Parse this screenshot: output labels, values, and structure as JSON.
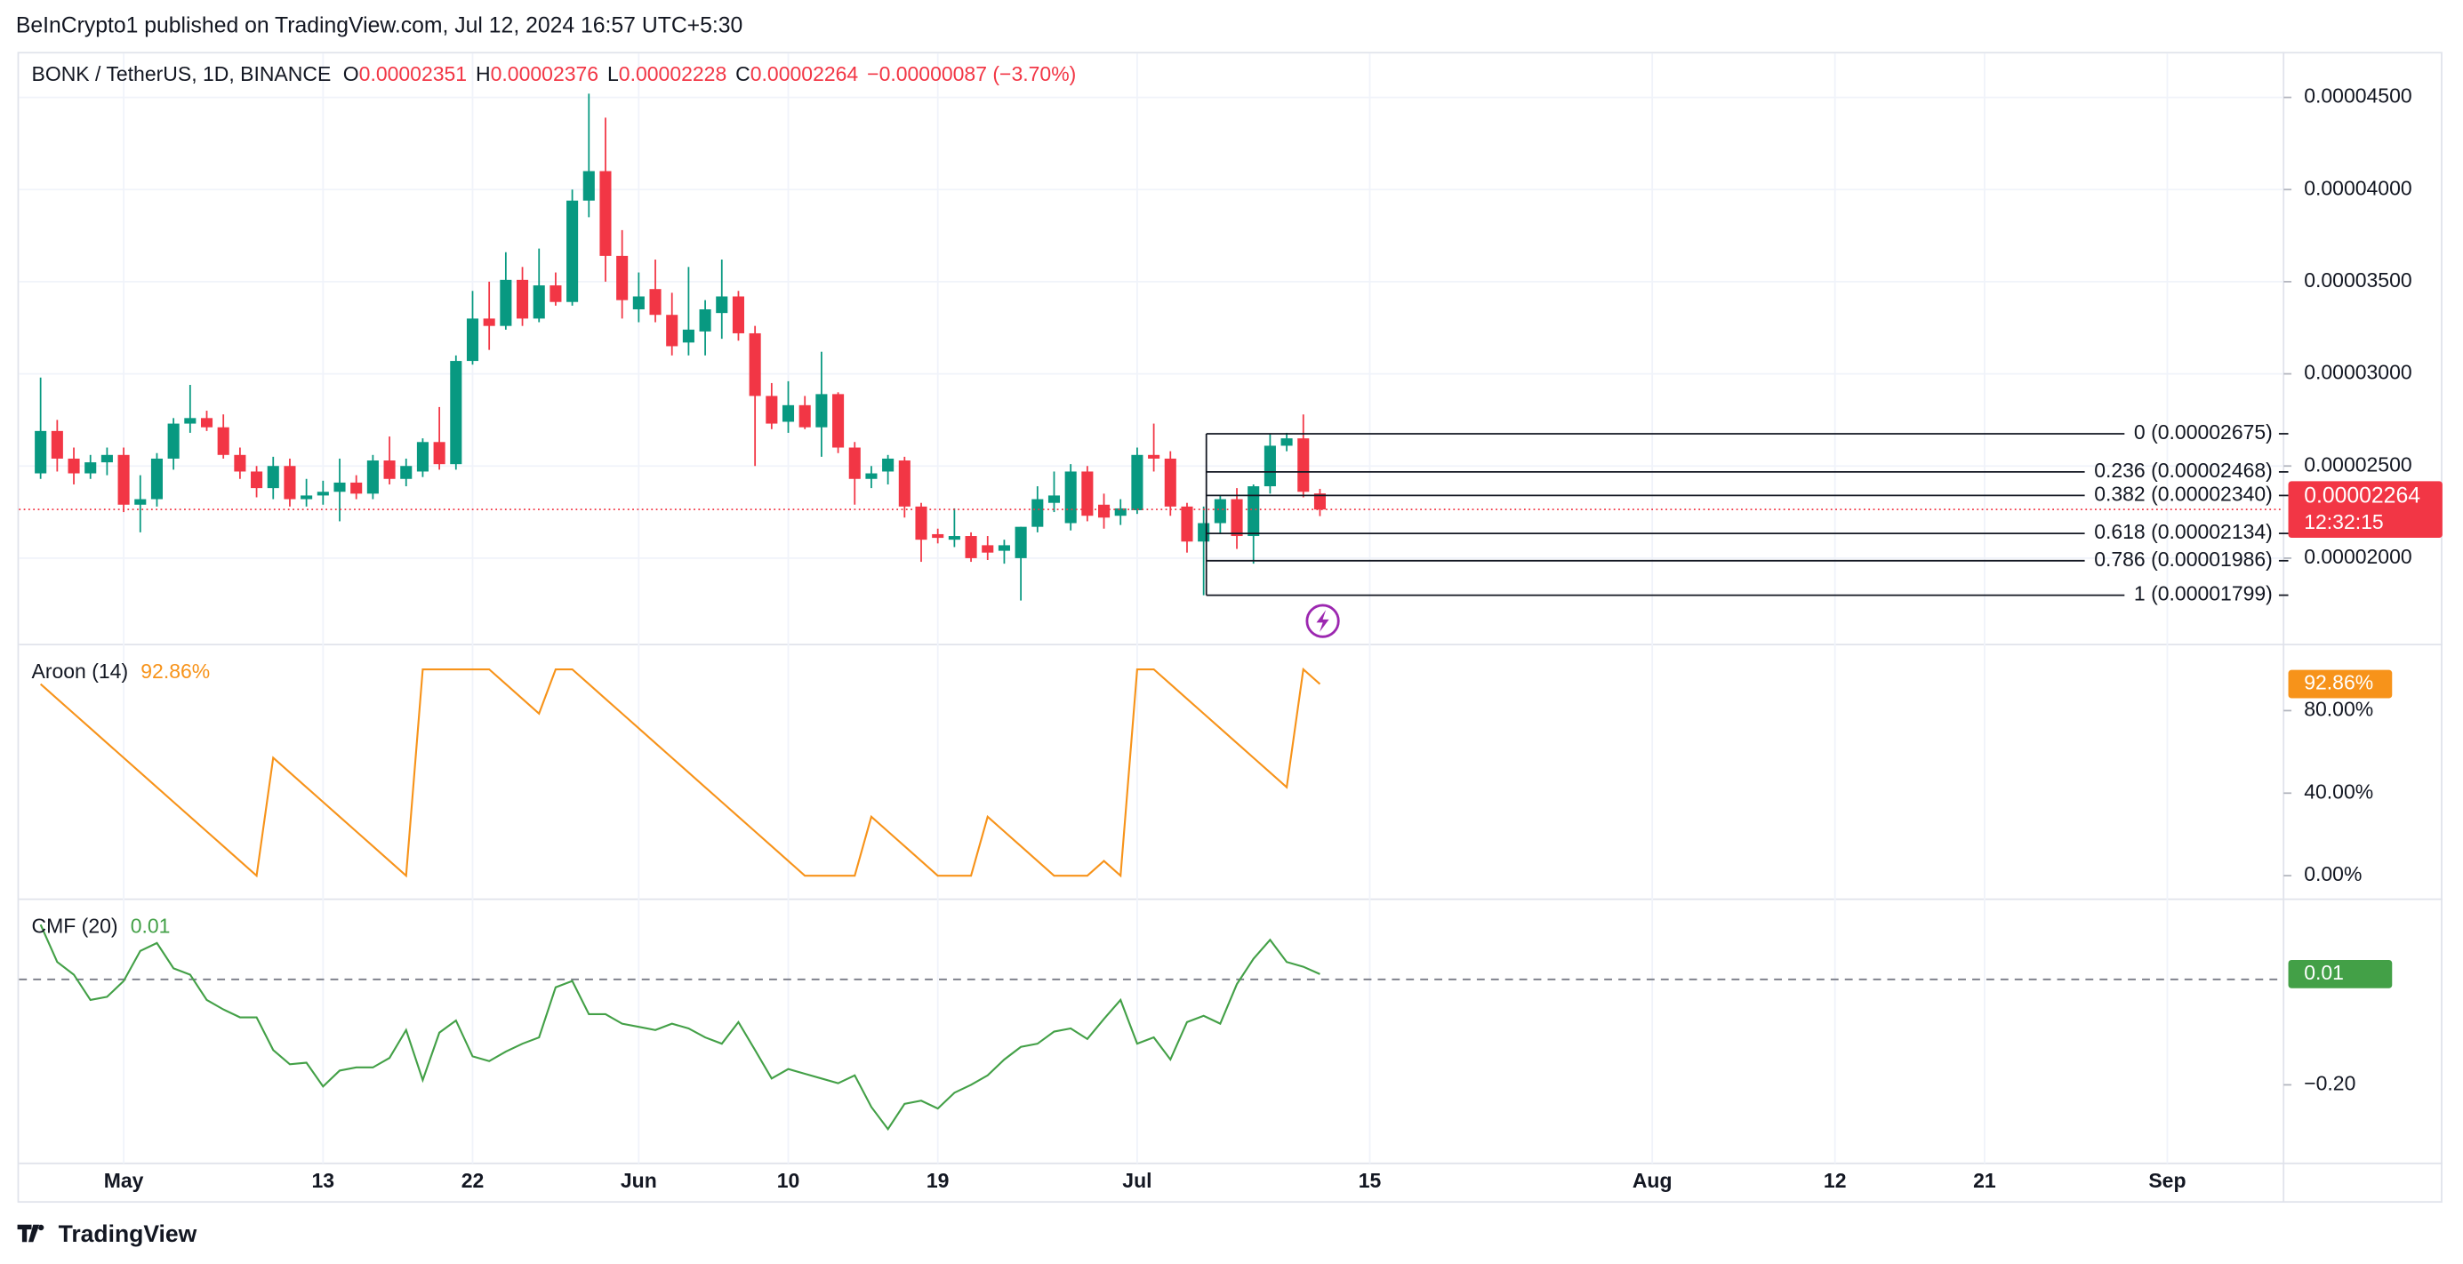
{
  "header": {
    "published": "BeInCrypto1 published on TradingView.com, Jul 12, 2024 16:57 UTC+5:30",
    "brand": "TradingView"
  },
  "chart_data": [
    {
      "type": "candlestick",
      "title": "BONK / TetherUS, 1D, BINANCE",
      "ohlc_labels": [
        "O",
        "H",
        "L",
        "C"
      ],
      "change": "−0.00000087 (−3.70%)",
      "countdown": "12:32:15",
      "up_color": "#089981",
      "down_color": "#f23645",
      "grid": true,
      "xlim": [
        115.7,
        252
      ],
      "xticks": [
        {
          "value": 122,
          "label": "May"
        },
        {
          "value": 134,
          "label": "13"
        },
        {
          "value": 143,
          "label": "22"
        },
        {
          "value": 153,
          "label": "Jun"
        },
        {
          "value": 162,
          "label": "10"
        },
        {
          "value": 171,
          "label": "19"
        },
        {
          "value": 183,
          "label": "Jul"
        },
        {
          "value": 197,
          "label": "15"
        },
        {
          "value": 214,
          "label": "Aug"
        },
        {
          "value": 225,
          "label": "12"
        },
        {
          "value": 234,
          "label": "21"
        },
        {
          "value": 245,
          "label": "Sep"
        }
      ],
      "ylim": [
        1.531e-05,
        4.747e-05
      ],
      "yticks": [
        {
          "value": 4.5e-05,
          "label": "0.00004500"
        },
        {
          "value": 4e-05,
          "label": "0.00004000"
        },
        {
          "value": 3.5e-05,
          "label": "0.00003500"
        },
        {
          "value": 3e-05,
          "label": "0.00003000"
        },
        {
          "value": 2.5e-05,
          "label": "0.00002500"
        },
        {
          "value": 2e-05,
          "label": "0.00002000"
        }
      ],
      "x": [
        117,
        118,
        119,
        120,
        121,
        122,
        123,
        124,
        125,
        126,
        127,
        128,
        129,
        130,
        131,
        132,
        133,
        134,
        135,
        136,
        137,
        138,
        139,
        140,
        141,
        142,
        143,
        144,
        145,
        146,
        147,
        148,
        149,
        150,
        151,
        152,
        153,
        154,
        155,
        156,
        157,
        158,
        159,
        160,
        161,
        162,
        163,
        164,
        165,
        166,
        167,
        168,
        169,
        170,
        171,
        172,
        173,
        174,
        175,
        176,
        177,
        178,
        179,
        180,
        181,
        182,
        183,
        184,
        185,
        186,
        187,
        188,
        189,
        190,
        191,
        192,
        193,
        194
      ],
      "open": [
        2.46e-05,
        2.69e-05,
        2.54e-05,
        2.46e-05,
        2.52e-05,
        2.56e-05,
        2.29e-05,
        2.32e-05,
        2.54e-05,
        2.73e-05,
        2.76e-05,
        2.71e-05,
        2.56e-05,
        2.47e-05,
        2.38e-05,
        2.5e-05,
        2.32e-05,
        2.34e-05,
        2.36e-05,
        2.41e-05,
        2.35e-05,
        2.53e-05,
        2.43e-05,
        2.47e-05,
        2.63e-05,
        2.51e-05,
        3.07e-05,
        3.3e-05,
        3.26e-05,
        3.51e-05,
        3.3e-05,
        3.48e-05,
        3.39e-05,
        3.94e-05,
        4.1e-05,
        3.64e-05,
        3.35e-05,
        3.46e-05,
        3.32e-05,
        3.17e-05,
        3.23e-05,
        3.33e-05,
        3.42e-05,
        3.22e-05,
        2.88e-05,
        2.74e-05,
        2.83e-05,
        2.71e-05,
        2.89e-05,
        2.6e-05,
        2.43e-05,
        2.47e-05,
        2.53e-05,
        2.28e-05,
        2.13e-05,
        2.1e-05,
        2.12e-05,
        2.07e-05,
        2.04e-05,
        2e-05,
        2.17e-05,
        2.3e-05,
        2.19e-05,
        2.47e-05,
        2.29e-05,
        2.23e-05,
        2.26e-05,
        2.56e-05,
        2.54e-05,
        2.28e-05,
        2.09e-05,
        2.19e-05,
        2.32e-05,
        2.12e-05,
        2.39e-05,
        2.61e-05,
        2.65e-05,
        2.351e-05
      ],
      "high": [
        2.98e-05,
        2.75e-05,
        2.6e-05,
        2.56e-05,
        2.6e-05,
        2.6e-05,
        2.45e-05,
        2.57e-05,
        2.76e-05,
        2.94e-05,
        2.8e-05,
        2.78e-05,
        2.6e-05,
        2.5e-05,
        2.55e-05,
        2.54e-05,
        2.43e-05,
        2.42e-05,
        2.54e-05,
        2.45e-05,
        2.56e-05,
        2.66e-05,
        2.54e-05,
        2.65e-05,
        2.82e-05,
        3.1e-05,
        3.45e-05,
        3.5e-05,
        3.66e-05,
        3.58e-05,
        3.68e-05,
        3.55e-05,
        4e-05,
        4.52e-05,
        4.39e-05,
        3.78e-05,
        3.55e-05,
        3.62e-05,
        3.44e-05,
        3.58e-05,
        3.4e-05,
        3.62e-05,
        3.45e-05,
        3.26e-05,
        2.95e-05,
        2.96e-05,
        2.88e-05,
        3.12e-05,
        2.9e-05,
        2.63e-05,
        2.5e-05,
        2.56e-05,
        2.55e-05,
        2.3e-05,
        2.16e-05,
        2.27e-05,
        2.14e-05,
        2.12e-05,
        2.1e-05,
        2.17e-05,
        2.39e-05,
        2.47e-05,
        2.51e-05,
        2.5e-05,
        2.35e-05,
        2.32e-05,
        2.6e-05,
        2.73e-05,
        2.58e-05,
        2.3e-05,
        2.28e-05,
        2.34e-05,
        2.38e-05,
        2.4e-05,
        2.675e-05,
        2.68e-05,
        2.78e-05,
        2.376e-05
      ],
      "low": [
        2.43e-05,
        2.47e-05,
        2.4e-05,
        2.43e-05,
        2.45e-05,
        2.25e-05,
        2.14e-05,
        2.28e-05,
        2.48e-05,
        2.68e-05,
        2.69e-05,
        2.54e-05,
        2.43e-05,
        2.33e-05,
        2.32e-05,
        2.28e-05,
        2.28e-05,
        2.29e-05,
        2.2e-05,
        2.32e-05,
        2.32e-05,
        2.4e-05,
        2.39e-05,
        2.44e-05,
        2.48e-05,
        2.48e-05,
        3.05e-05,
        3.13e-05,
        3.24e-05,
        3.26e-05,
        3.28e-05,
        3.37e-05,
        3.37e-05,
        3.85e-05,
        3.5e-05,
        3.3e-05,
        3.28e-05,
        3.28e-05,
        3.1e-05,
        3.1e-05,
        3.1e-05,
        3.19e-05,
        3.18e-05,
        2.5e-05,
        2.7e-05,
        2.68e-05,
        2.7e-05,
        2.55e-05,
        2.57e-05,
        2.29e-05,
        2.38e-05,
        2.4e-05,
        2.22e-05,
        1.98e-05,
        2.08e-05,
        2.06e-05,
        1.98e-05,
        1.99e-05,
        1.97e-05,
        1.77e-05,
        2.14e-05,
        2.25e-05,
        2.15e-05,
        2.2e-05,
        2.16e-05,
        2.18e-05,
        2.24e-05,
        2.47e-05,
        2.23e-05,
        2.03e-05,
        1.799e-05,
        2.13e-05,
        2.05e-05,
        1.97e-05,
        2.35e-05,
        2.58e-05,
        2.33e-05,
        2.228e-05
      ],
      "close": [
        2.69e-05,
        2.54e-05,
        2.46e-05,
        2.52e-05,
        2.56e-05,
        2.29e-05,
        2.32e-05,
        2.54e-05,
        2.73e-05,
        2.76e-05,
        2.71e-05,
        2.56e-05,
        2.47e-05,
        2.38e-05,
        2.5e-05,
        2.32e-05,
        2.34e-05,
        2.36e-05,
        2.41e-05,
        2.35e-05,
        2.53e-05,
        2.43e-05,
        2.5e-05,
        2.63e-05,
        2.51e-05,
        3.07e-05,
        3.3e-05,
        3.26e-05,
        3.51e-05,
        3.3e-05,
        3.48e-05,
        3.39e-05,
        3.94e-05,
        4.1e-05,
        3.64e-05,
        3.4e-05,
        3.42e-05,
        3.32e-05,
        3.15e-05,
        3.24e-05,
        3.35e-05,
        3.42e-05,
        3.22e-05,
        2.88e-05,
        2.73e-05,
        2.83e-05,
        2.71e-05,
        2.89e-05,
        2.6e-05,
        2.43e-05,
        2.46e-05,
        2.54e-05,
        2.28e-05,
        2.1e-05,
        2.11e-05,
        2.12e-05,
        2e-05,
        2.03e-05,
        2.07e-05,
        2.17e-05,
        2.32e-05,
        2.34e-05,
        2.47e-05,
        2.23e-05,
        2.22e-05,
        2.27e-05,
        2.56e-05,
        2.54e-05,
        2.28e-05,
        2.09e-05,
        2.19e-05,
        2.32e-05,
        2.12e-05,
        2.39e-05,
        2.61e-05,
        2.65e-05,
        2.36e-05,
        2.264e-05
      ],
      "fib": {
        "color": "#131722",
        "levels": [
          {
            "value": 2.675e-05,
            "label": "0 (0.00002675)"
          },
          {
            "value": 2.468e-05,
            "label": "0.236 (0.00002468)"
          },
          {
            "value": 2.34e-05,
            "label": "0.382 (0.00002340)"
          },
          {
            "value": 2.134e-05,
            "label": "0.618 (0.00002134)"
          },
          {
            "value": 1.986e-05,
            "label": "0.786 (0.00001986)"
          },
          {
            "value": 1.799e-05,
            "label": "1 (0.00001799)"
          }
        ]
      }
    },
    {
      "type": "line",
      "grid": false,
      "xlim": [
        115.7,
        252
      ],
      "ylim": [
        -11.43,
        112
      ],
      "yticks": [
        {
          "value": 80,
          "label": "80.00%"
        },
        {
          "value": 40,
          "label": "40.00%"
        },
        {
          "value": 0,
          "label": "0.00%"
        }
      ],
      "x": [
        117,
        118,
        119,
        120,
        121,
        122,
        123,
        124,
        125,
        126,
        127,
        128,
        129,
        130,
        131,
        132,
        133,
        134,
        135,
        136,
        137,
        138,
        139,
        140,
        141,
        142,
        143,
        144,
        145,
        146,
        147,
        148,
        149,
        150,
        151,
        152,
        153,
        154,
        155,
        156,
        157,
        158,
        159,
        160,
        161,
        162,
        163,
        164,
        165,
        166,
        167,
        168,
        169,
        170,
        171,
        172,
        173,
        174,
        175,
        176,
        177,
        178,
        179,
        180,
        181,
        182,
        183,
        184,
        185,
        186,
        187,
        188,
        189,
        190,
        191,
        192,
        193,
        194
      ],
      "series": [
        {
          "name": "Aroon (14)",
          "color": "#f7931a",
          "values": [
            92.86,
            85.71,
            78.57,
            71.43,
            64.29,
            57.14,
            50,
            42.86,
            35.71,
            28.57,
            21.43,
            14.29,
            7.14,
            0,
            57.14,
            50,
            42.86,
            35.71,
            28.57,
            21.43,
            14.29,
            7.14,
            0,
            100,
            100,
            100,
            100,
            100,
            92.86,
            85.71,
            78.57,
            100,
            100,
            92.86,
            85.71,
            78.57,
            71.43,
            64.29,
            57.14,
            50,
            42.86,
            35.71,
            28.57,
            21.43,
            14.29,
            7.14,
            0,
            0,
            0,
            0,
            28.57,
            21.43,
            14.29,
            7.14,
            0,
            0,
            0,
            28.57,
            21.43,
            14.29,
            7.14,
            0,
            0,
            0,
            7.14,
            0,
            100,
            100,
            92.86,
            85.71,
            78.57,
            71.43,
            64.29,
            57.14,
            50,
            42.86,
            100,
            92.86
          ],
          "value_labels": [
            null,
            null,
            null,
            null,
            null,
            null,
            null,
            null,
            null,
            null,
            null,
            null,
            null,
            null,
            null,
            null,
            null,
            null,
            null,
            null,
            null,
            null,
            null,
            null,
            null,
            null,
            null,
            null,
            null,
            null,
            null,
            null,
            null,
            null,
            null,
            null,
            null,
            null,
            null,
            null,
            null,
            null,
            null,
            null,
            null,
            null,
            null,
            null,
            null,
            null,
            null,
            null,
            null,
            null,
            null,
            null,
            null,
            null,
            null,
            null,
            null,
            null,
            null,
            null,
            null,
            null,
            null,
            null,
            null,
            null,
            null,
            null,
            null,
            null,
            null,
            null,
            null,
            "92.86%"
          ]
        }
      ]
    },
    {
      "type": "line",
      "grid": false,
      "baseline": 0,
      "xlim": [
        115.7,
        252
      ],
      "ylim": [
        -0.349,
        0.152
      ],
      "yticks": [
        {
          "value": -0.2,
          "label": "−0.20"
        }
      ],
      "x": [
        117,
        118,
        119,
        120,
        121,
        122,
        123,
        124,
        125,
        126,
        127,
        128,
        129,
        130,
        131,
        132,
        133,
        134,
        135,
        136,
        137,
        138,
        139,
        140,
        141,
        142,
        143,
        144,
        145,
        146,
        147,
        148,
        149,
        150,
        151,
        152,
        153,
        154,
        155,
        156,
        157,
        158,
        159,
        160,
        161,
        162,
        163,
        164,
        165,
        166,
        167,
        168,
        169,
        170,
        171,
        172,
        173,
        174,
        175,
        176,
        177,
        178,
        179,
        180,
        181,
        182,
        183,
        184,
        185,
        186,
        187,
        188,
        189,
        190,
        191,
        192,
        193,
        194
      ],
      "series": [
        {
          "name": "CMF (20)",
          "color": "#43a047",
          "values": [
            0.104,
            0.033,
            0.009,
            -0.039,
            -0.033,
            -0.003,
            0.054,
            0.069,
            0.021,
            0.009,
            -0.039,
            -0.057,
            -0.072,
            -0.072,
            -0.134,
            -0.161,
            -0.158,
            -0.203,
            -0.173,
            -0.167,
            -0.167,
            -0.149,
            -0.096,
            -0.191,
            -0.101,
            -0.078,
            -0.146,
            -0.155,
            -0.137,
            -0.122,
            -0.11,
            -0.015,
            -0.003,
            -0.066,
            -0.066,
            -0.084,
            -0.09,
            -0.096,
            -0.084,
            -0.093,
            -0.11,
            -0.122,
            -0.081,
            -0.134,
            -0.188,
            -0.17,
            -0.179,
            -0.188,
            -0.197,
            -0.182,
            -0.242,
            -0.284,
            -0.236,
            -0.23,
            -0.245,
            -0.215,
            -0.2,
            -0.182,
            -0.152,
            -0.128,
            -0.122,
            -0.099,
            -0.093,
            -0.113,
            -0.075,
            -0.039,
            -0.122,
            -0.11,
            -0.152,
            -0.081,
            -0.069,
            -0.084,
            -0.009,
            0.039,
            0.075,
            0.033,
            0.024,
            0.01
          ]
        }
      ]
    }
  ]
}
